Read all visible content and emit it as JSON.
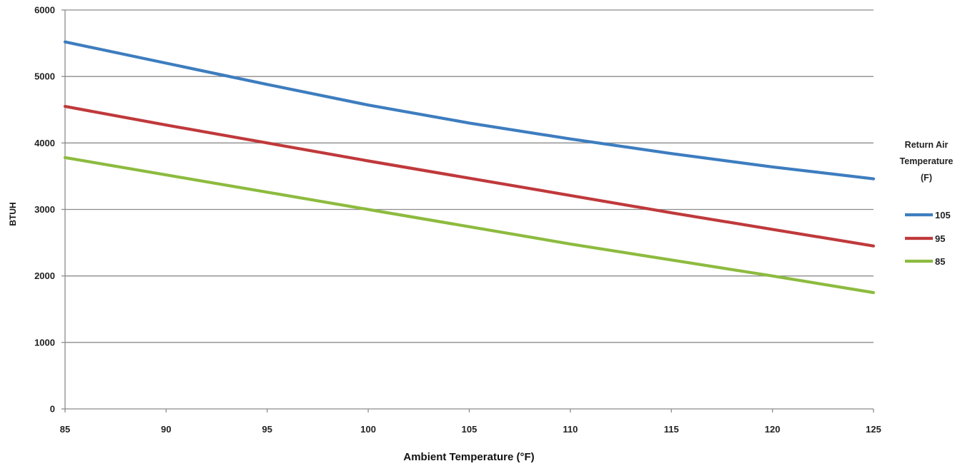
{
  "chart_data": {
    "type": "line",
    "title": "",
    "xlabel": "Ambient Temperature (°F)",
    "ylabel": "BTUH",
    "xlim": [
      85,
      125
    ],
    "ylim": [
      0,
      6000
    ],
    "xticks": [
      85,
      90,
      95,
      100,
      105,
      110,
      115,
      120,
      125
    ],
    "yticks": [
      0,
      1000,
      2000,
      3000,
      4000,
      5000,
      6000
    ],
    "grid": "horizontal",
    "legend_title": [
      "Return Air",
      "Temperature",
      "(F)"
    ],
    "legend_position": "right",
    "series": [
      {
        "name": "105",
        "color": "#3D7DBF",
        "x": [
          85,
          90,
          95,
          100,
          105,
          110,
          115,
          120,
          125
        ],
        "y": [
          5520,
          5200,
          4880,
          4570,
          4300,
          4060,
          3840,
          3640,
          3460
        ]
      },
      {
        "name": "95",
        "color": "#C0393B",
        "x": [
          85,
          90,
          95,
          100,
          105,
          110,
          115,
          120,
          125
        ],
        "y": [
          4550,
          4270,
          4000,
          3730,
          3470,
          3210,
          2950,
          2700,
          2450
        ]
      },
      {
        "name": "85",
        "color": "#8DBB3F",
        "x": [
          85,
          90,
          95,
          100,
          105,
          110,
          115,
          120,
          125
        ],
        "y": [
          3780,
          3520,
          3260,
          3000,
          2740,
          2480,
          2240,
          2000,
          1750
        ]
      }
    ]
  }
}
